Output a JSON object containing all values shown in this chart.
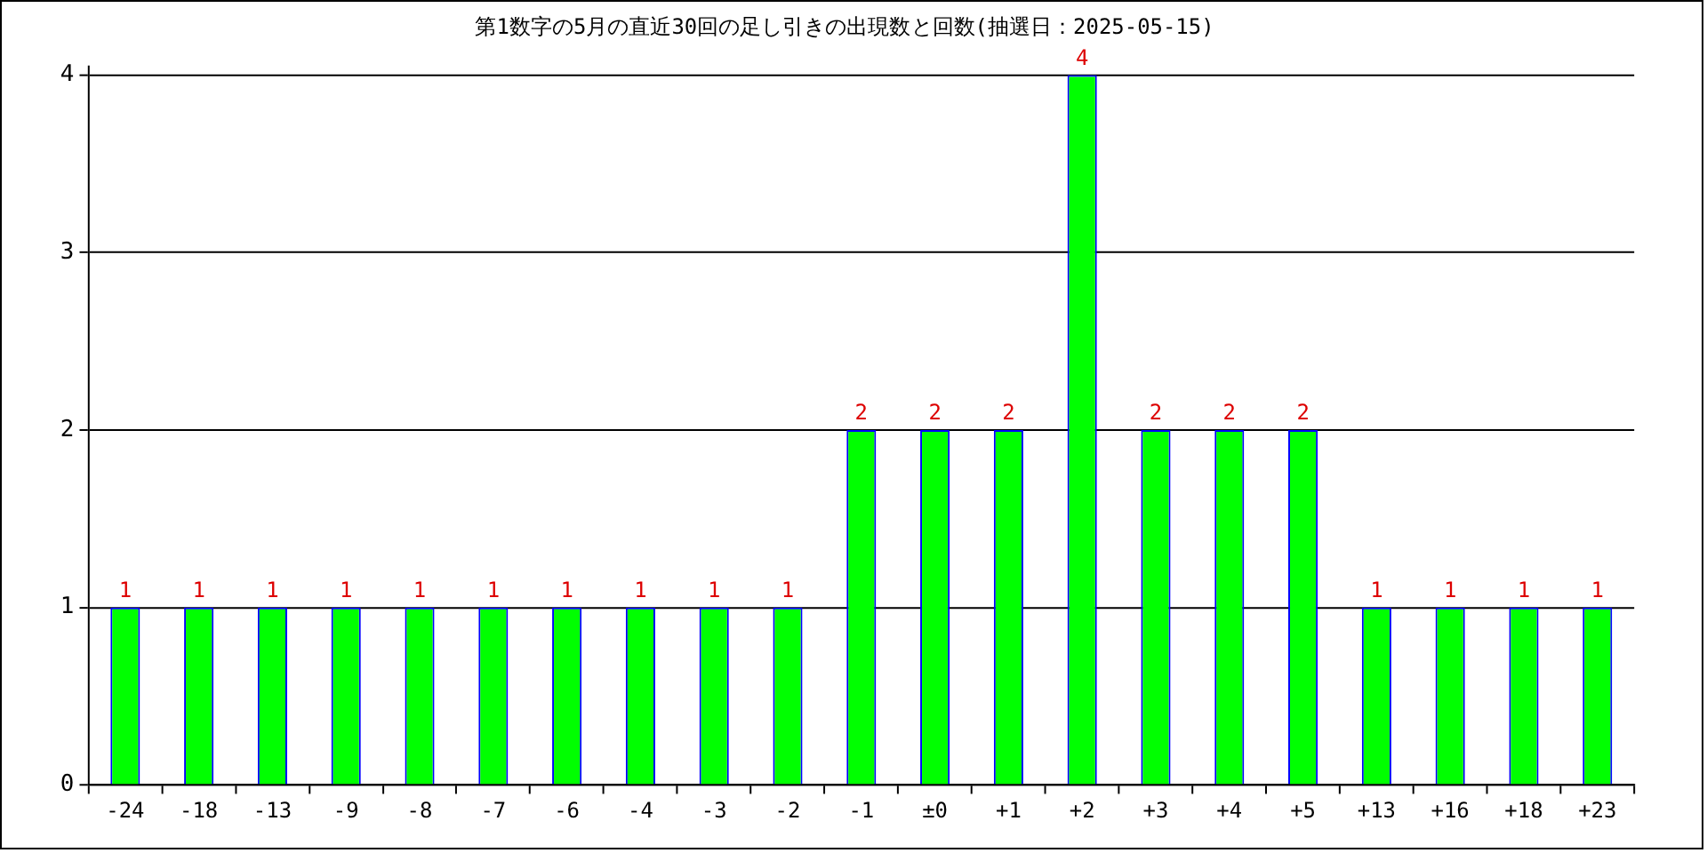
{
  "chart_data": {
    "type": "bar",
    "title": "第1数字の5月の直近30回の足し引きの出現数と回数(抽選日：2025-05-15)",
    "categories": [
      "-24",
      "-18",
      "-13",
      "-9",
      "-8",
      "-7",
      "-6",
      "-4",
      "-3",
      "-2",
      "-1",
      "±0",
      "+1",
      "+2",
      "+3",
      "+4",
      "+5",
      "+13",
      "+16",
      "+18",
      "+23"
    ],
    "values": [
      1,
      1,
      1,
      1,
      1,
      1,
      1,
      1,
      1,
      1,
      2,
      2,
      2,
      4,
      2,
      2,
      2,
      1,
      1,
      1,
      1
    ],
    "color": "#00ff00",
    "ylim": [
      0,
      4.05
    ],
    "yticks": [
      0,
      1,
      2,
      3,
      4
    ],
    "grid": "y",
    "data_labels": true,
    "legend": false
  }
}
